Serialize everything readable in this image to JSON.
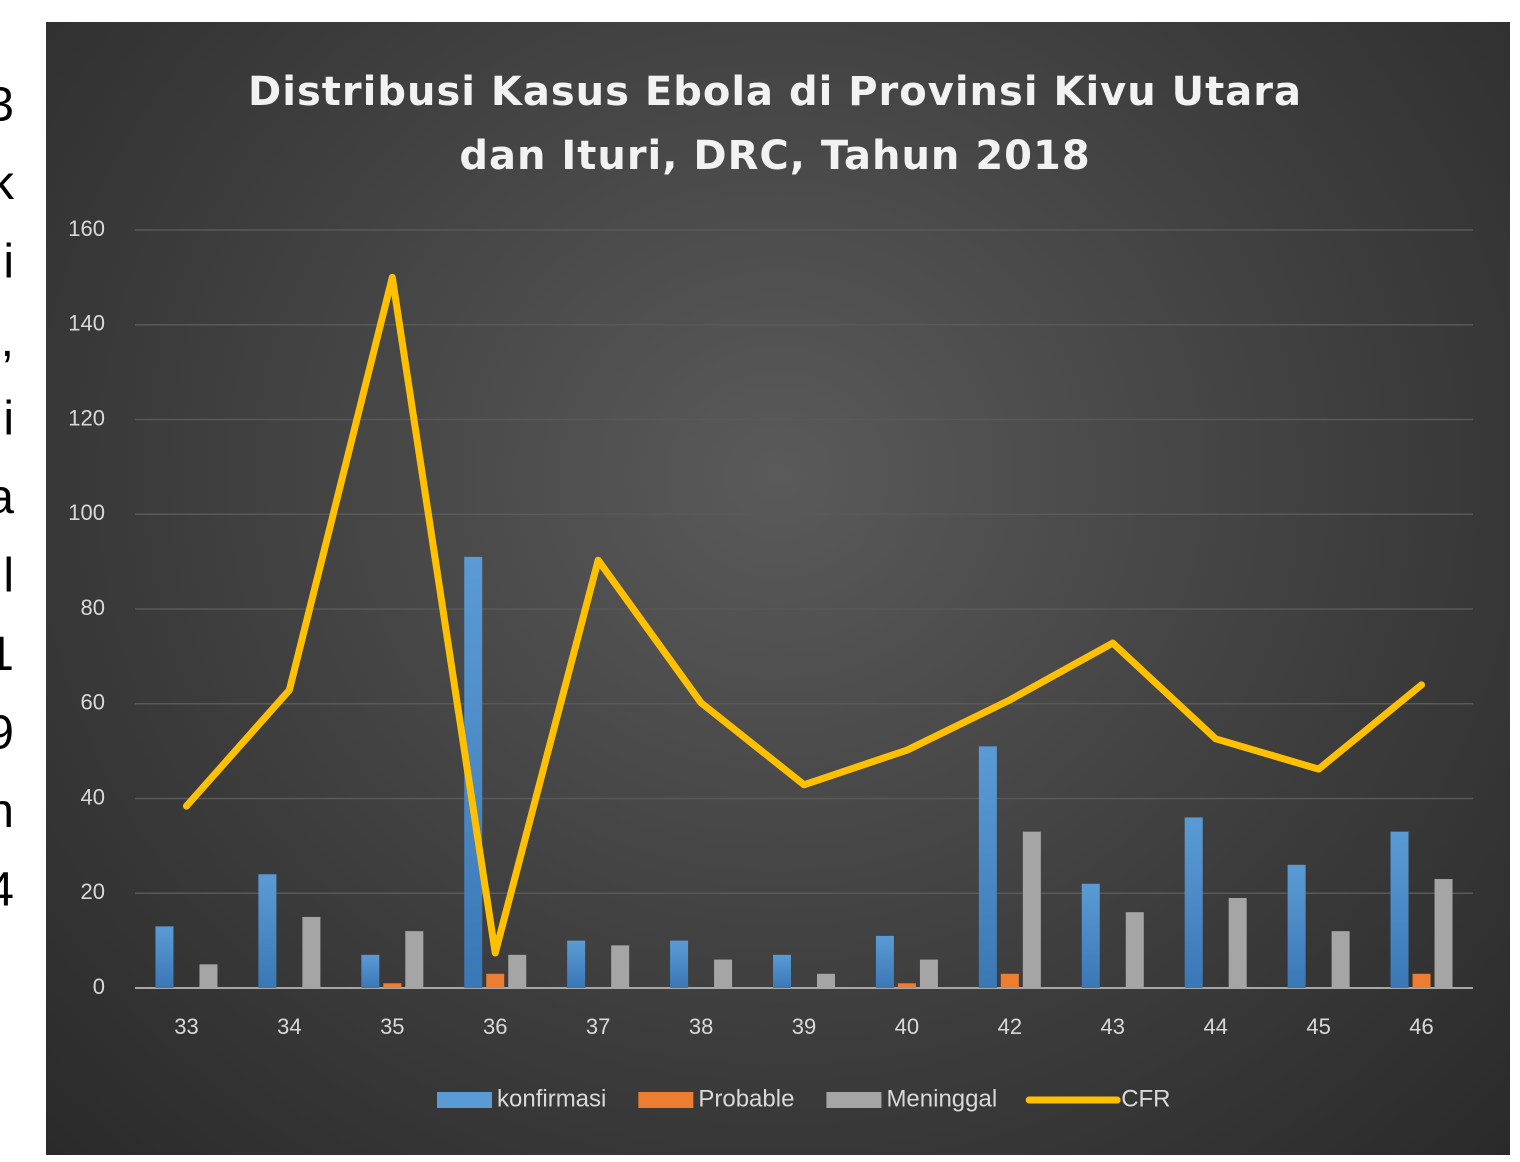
{
  "margin_text": [
    "3",
    "k",
    "i",
    ",",
    "i",
    "a",
    "l",
    "1",
    "9",
    "n",
    "4"
  ],
  "chart_data": {
    "type": "bar-line",
    "title": "Distribusi Kasus Ebola di Provinsi Kivu Utara dan Ituri, DRC, Tahun 2018",
    "categories": [
      "33",
      "34",
      "35",
      "36",
      "37",
      "38",
      "39",
      "40",
      "42",
      "43",
      "44",
      "45",
      "46"
    ],
    "series": [
      {
        "name": "konfirmasi",
        "type": "bar",
        "color": "#5b9bd5",
        "values": [
          13,
          24,
          7,
          91,
          10,
          10,
          7,
          11,
          51,
          22,
          36,
          26,
          33
        ]
      },
      {
        "name": "Probable",
        "type": "bar",
        "color": "#ed7d31",
        "values": [
          0,
          0,
          1,
          3,
          0,
          0,
          0,
          1,
          3,
          0,
          0,
          0,
          3
        ]
      },
      {
        "name": "Meninggal",
        "type": "bar",
        "color": "#a5a5a5",
        "values": [
          5,
          15,
          12,
          7,
          9,
          6,
          3,
          6,
          33,
          16,
          19,
          12,
          23
        ]
      },
      {
        "name": "CFR",
        "type": "line",
        "color": "#ffc000",
        "values": [
          38.4,
          62.9,
          150,
          7.4,
          90.3,
          60.2,
          42.9,
          50.2,
          60.8,
          72.8,
          52.6,
          46.2,
          64
        ]
      }
    ],
    "ylim": [
      0,
      160
    ],
    "yticks": [
      0,
      20,
      40,
      60,
      80,
      100,
      120,
      140,
      160
    ],
    "grid": true,
    "legend": "bottom"
  }
}
